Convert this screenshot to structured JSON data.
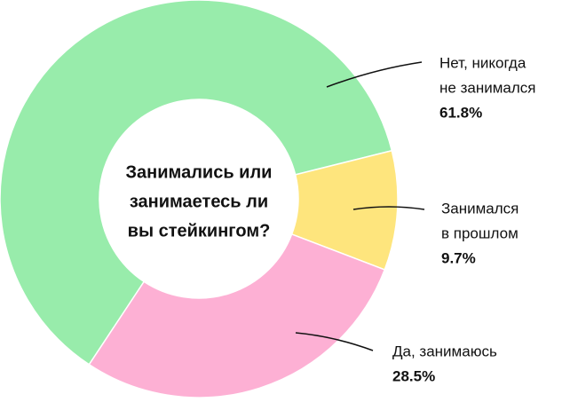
{
  "chart_data": {
    "type": "pie",
    "title": [
      "Занимались или",
      "занимаетесь ли",
      "вы стейкингом?"
    ],
    "categories": [
      [
        "Нет, никогда",
        "не занимался"
      ],
      [
        "Занимался",
        "в прошлом"
      ],
      [
        "Да, занимаюсь"
      ]
    ],
    "values": [
      61.8,
      9.7,
      28.5
    ],
    "value_labels": [
      "61.8%",
      "9.7%",
      "28.5%"
    ],
    "colors": [
      "#98ecab",
      "#fee57d",
      "#fdb0d4"
    ]
  }
}
